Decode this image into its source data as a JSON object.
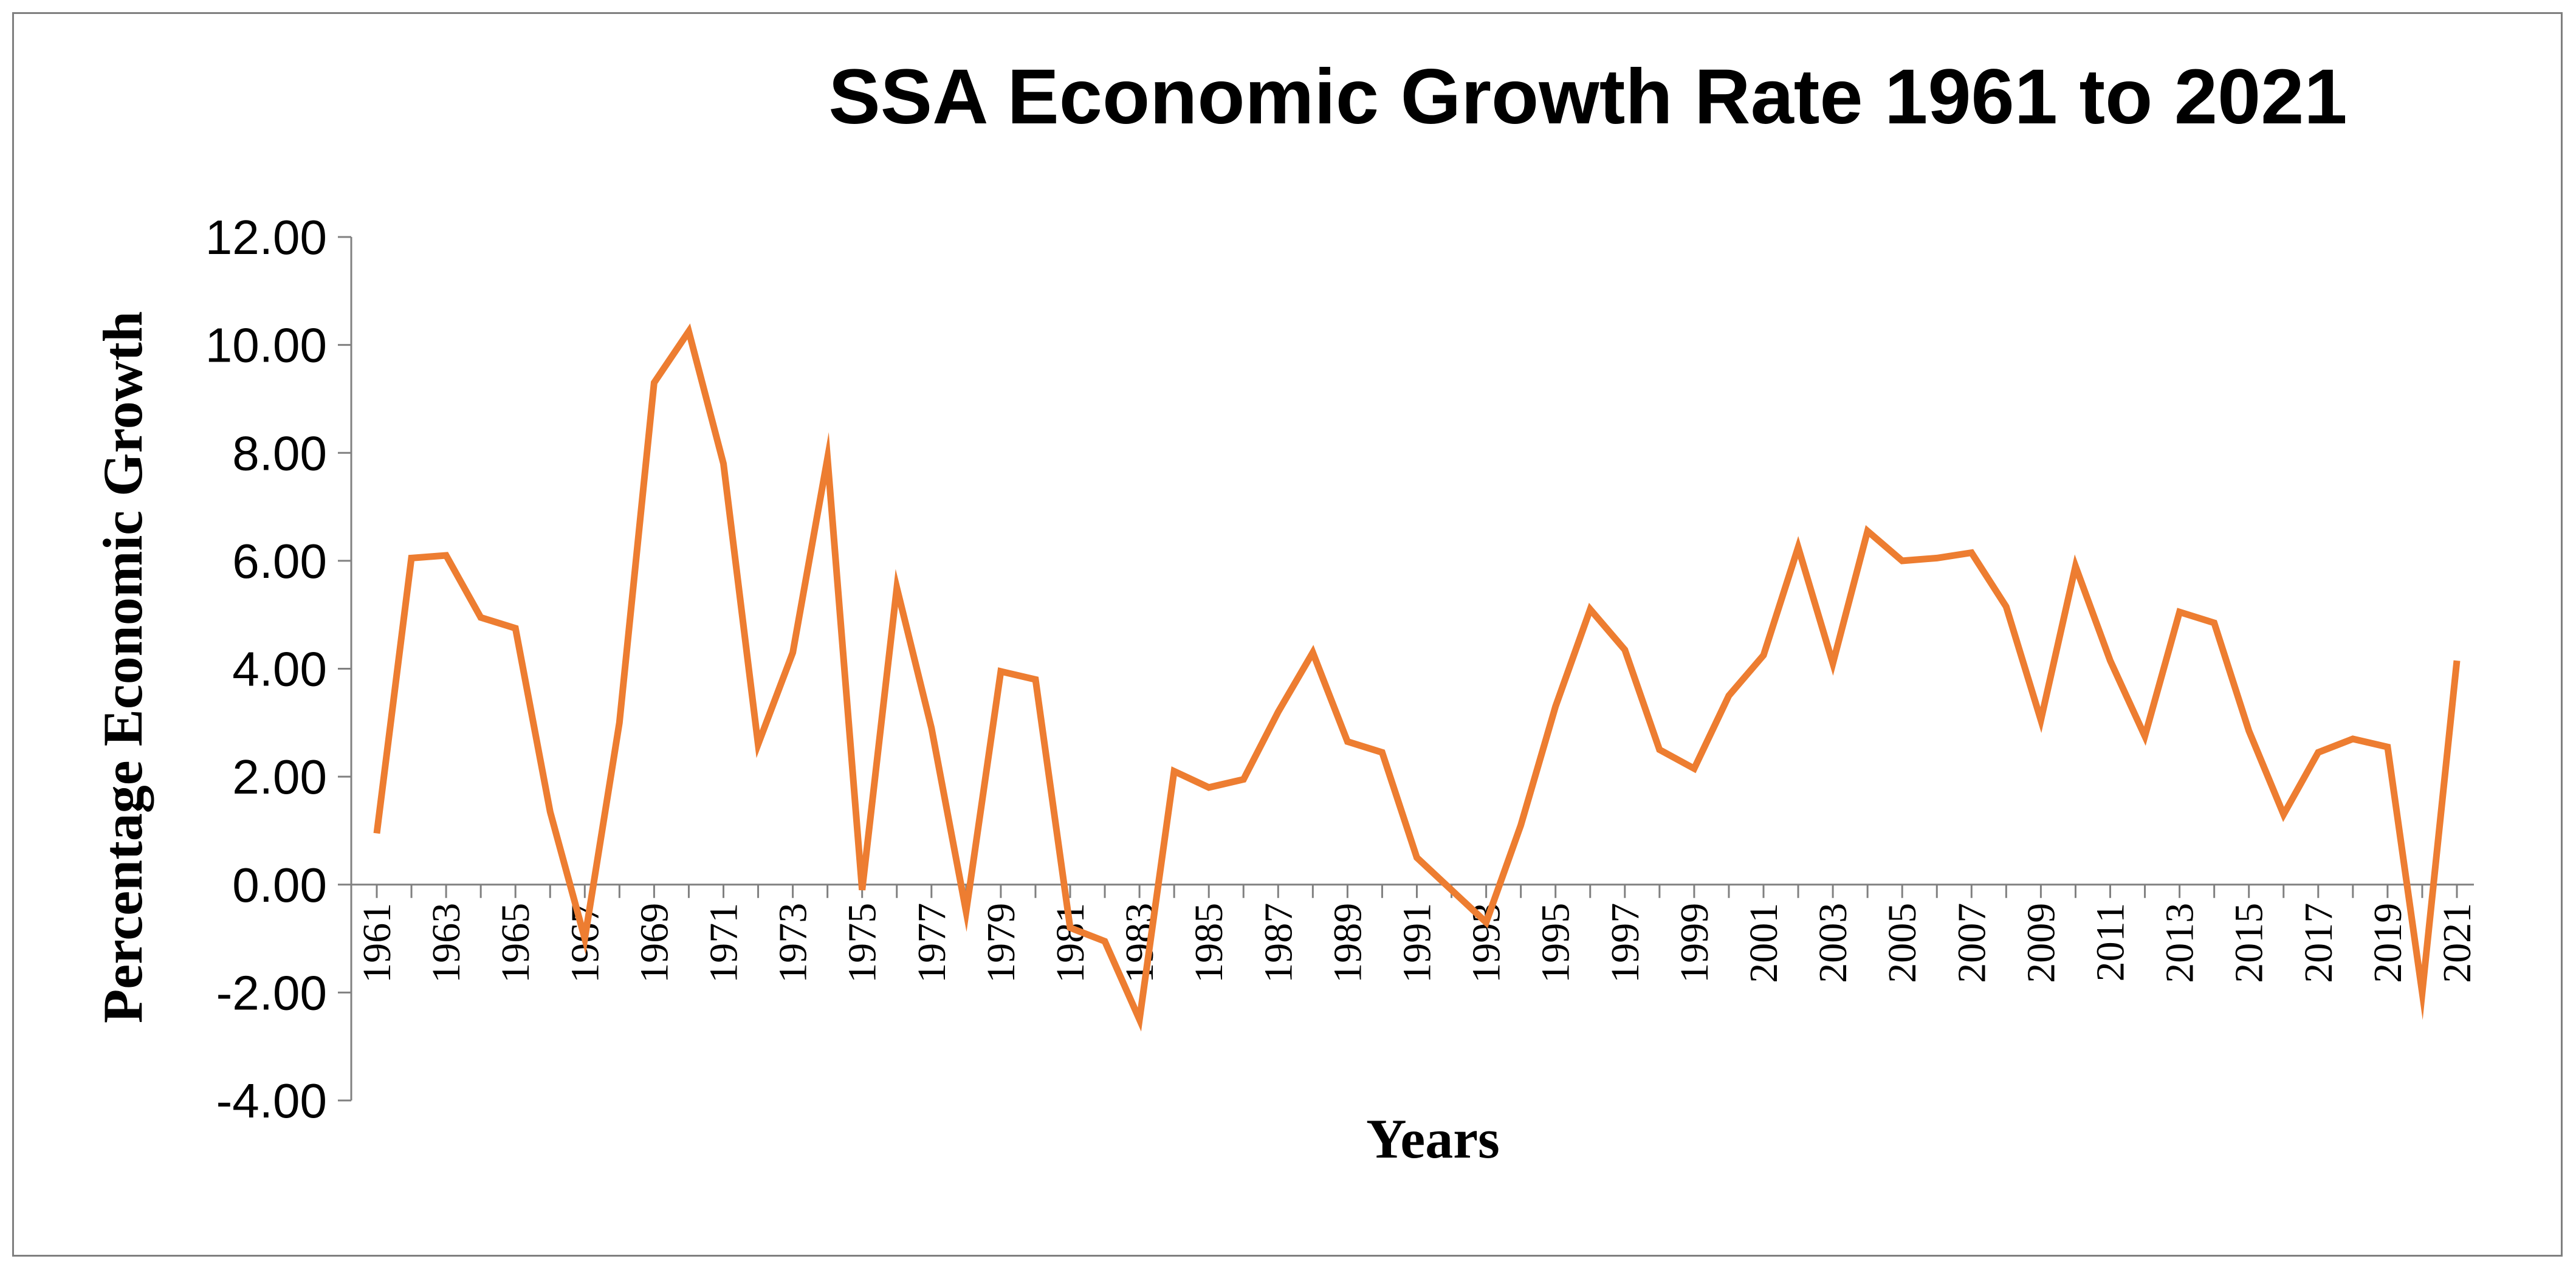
{
  "chart_data": {
    "type": "line",
    "title": "SSA Economic Growth Rate 1961 to 2021",
    "xlabel": "Years",
    "ylabel": "Percentage Economic Growth",
    "ylim": [
      -4,
      12
    ],
    "ytick_values": [
      12,
      10,
      8,
      6,
      4,
      2,
      0,
      -2,
      -4
    ],
    "ytick_labels": [
      "12.00",
      "10.00",
      "8.00",
      "6.00",
      "4.00",
      "2.00",
      "0.00",
      "-2.00",
      "-4.00"
    ],
    "xtick_labels": [
      "1961",
      "1963",
      "1965",
      "1967",
      "1969",
      "1971",
      "1973",
      "1975",
      "1977",
      "1979",
      "1981",
      "1983",
      "1985",
      "1987",
      "1989",
      "1991",
      "1993",
      "1995",
      "1997",
      "1999",
      "2001",
      "2003",
      "2005",
      "2007",
      "2009",
      "2011",
      "2013",
      "2015",
      "2017",
      "2019",
      "2021"
    ],
    "grid": false,
    "legend": "none",
    "line_color": "#ED7D31",
    "series": [
      {
        "name": "SSA Economic Growth Rate",
        "x": [
          1961,
          1962,
          1963,
          1964,
          1965,
          1966,
          1967,
          1968,
          1969,
          1970,
          1971,
          1972,
          1973,
          1974,
          1975,
          1976,
          1977,
          1978,
          1979,
          1980,
          1981,
          1982,
          1983,
          1984,
          1985,
          1986,
          1987,
          1988,
          1989,
          1990,
          1991,
          1992,
          1993,
          1994,
          1995,
          1996,
          1997,
          1998,
          1999,
          2000,
          2001,
          2002,
          2003,
          2004,
          2005,
          2006,
          2007,
          2008,
          2009,
          2010,
          2011,
          2012,
          2013,
          2014,
          2015,
          2016,
          2017,
          2018,
          2019,
          2020,
          2021
        ],
        "values": [
          0.95,
          6.05,
          6.1,
          4.95,
          4.75,
          1.35,
          -1.0,
          3.0,
          9.3,
          10.25,
          7.8,
          2.6,
          4.3,
          7.9,
          -0.1,
          5.5,
          2.9,
          -0.5,
          3.95,
          3.8,
          -0.8,
          -1.05,
          -2.5,
          2.1,
          1.8,
          1.95,
          3.2,
          4.3,
          2.65,
          2.45,
          0.5,
          -0.1,
          -0.7,
          1.1,
          3.3,
          5.1,
          4.35,
          2.5,
          2.15,
          3.5,
          4.25,
          6.25,
          4.1,
          6.55,
          6.0,
          6.05,
          6.15,
          5.15,
          3.05,
          5.9,
          4.15,
          2.75,
          5.05,
          4.85,
          2.85,
          1.3,
          2.45,
          2.7,
          2.55,
          -2.0,
          4.15
        ]
      }
    ]
  }
}
